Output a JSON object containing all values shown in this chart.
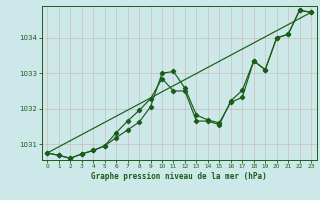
{
  "title": "Graphe pression niveau de la mer (hPa)",
  "bg_color": "#cce8e8",
  "grid_color": "#aac8c8",
  "line_color": "#1a5c1a",
  "x_min": -0.5,
  "x_max": 23.5,
  "y_min": 1030.55,
  "y_max": 1034.9,
  "yticks": [
    1031,
    1032,
    1033,
    1034
  ],
  "xticks": [
    0,
    1,
    2,
    3,
    4,
    5,
    6,
    7,
    8,
    9,
    10,
    11,
    12,
    13,
    14,
    15,
    16,
    17,
    18,
    19,
    20,
    21,
    22,
    23
  ],
  "series1_x": [
    0,
    1,
    2,
    3,
    4,
    5,
    6,
    7,
    8,
    9,
    10,
    11,
    12,
    13,
    14,
    15,
    16,
    17,
    18,
    19,
    20,
    21,
    22,
    23
  ],
  "series1_y": [
    1030.75,
    1030.68,
    1030.6,
    1030.72,
    1030.82,
    1030.95,
    1031.18,
    1031.4,
    1031.62,
    1032.05,
    1033.0,
    1033.05,
    1032.58,
    1031.82,
    1031.68,
    1031.6,
    1032.18,
    1032.32,
    1033.35,
    1033.1,
    1034.0,
    1034.1,
    1034.78,
    1034.72
  ],
  "series2_x": [
    0,
    1,
    2,
    3,
    4,
    5,
    6,
    7,
    8,
    9,
    10,
    11,
    12,
    13,
    14,
    15,
    16,
    17,
    18,
    19,
    20,
    21,
    22,
    23
  ],
  "series2_y": [
    1030.75,
    1030.68,
    1030.6,
    1030.72,
    1030.82,
    1030.95,
    1031.32,
    1031.65,
    1031.95,
    1032.28,
    1032.85,
    1032.5,
    1032.5,
    1031.65,
    1031.65,
    1031.55,
    1032.22,
    1032.52,
    1033.35,
    1033.1,
    1034.0,
    1034.1,
    1034.78,
    1034.72
  ],
  "trend_x": [
    0,
    23
  ],
  "trend_y": [
    1030.75,
    1034.72
  ]
}
